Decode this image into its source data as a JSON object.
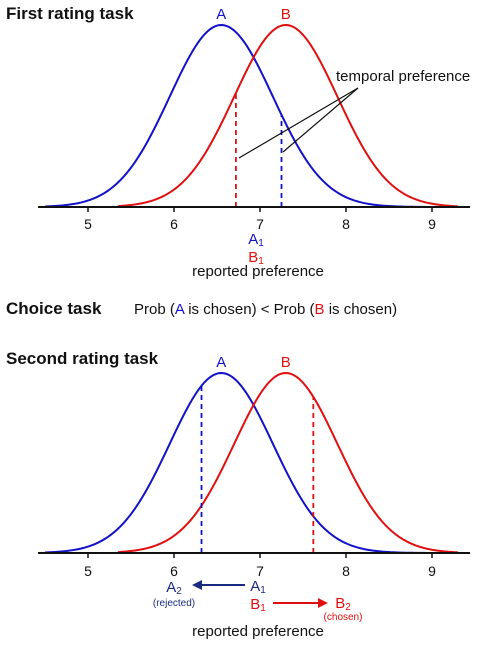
{
  "colors": {
    "a": "#1212c8",
    "b": "#e01010",
    "axis": "#111111",
    "navy": "#1a2a80"
  },
  "first_task": {
    "heading": "First rating task",
    "label_a": "A",
    "label_b": "B",
    "annotation": "temporal preference",
    "ticks": [
      "5",
      "6",
      "7",
      "8",
      "9"
    ],
    "a1_base": "A",
    "a1_sub": "1",
    "b1_base": "B",
    "b1_sub": "1",
    "xlabel": "reported preference"
  },
  "choice_task": {
    "heading": "Choice task",
    "prob_open_1": "Prob (",
    "a": "A",
    "chosen_mid": " is chosen) < Prob (",
    "b": "B",
    "chosen_end": " is chosen)"
  },
  "second_task": {
    "heading": "Second rating task",
    "label_a": "A",
    "label_b": "B",
    "ticks": [
      "5",
      "6",
      "7",
      "8",
      "9"
    ],
    "a2_base": "A",
    "a2_sub": "2",
    "a2_note": "(rejected)",
    "a1_base": "A",
    "a1_sub": "1",
    "b1_base": "B",
    "b1_sub": "1",
    "b2_base": "B",
    "b2_sub": "2",
    "b2_note": "(chosen)",
    "xlabel": "reported preference"
  },
  "chart_data": {
    "type": "line",
    "series": [
      {
        "name": "A",
        "mean": 6.55,
        "sd": 0.6
      },
      {
        "name": "B",
        "mean": 7.3,
        "sd": 0.6
      }
    ],
    "first_task_markers": {
      "A": 7.25,
      "B": 6.72
    },
    "second_task_markers": {
      "A2": 6.32,
      "B2": 7.62
    },
    "xlim": [
      4.5,
      9.3
    ]
  }
}
